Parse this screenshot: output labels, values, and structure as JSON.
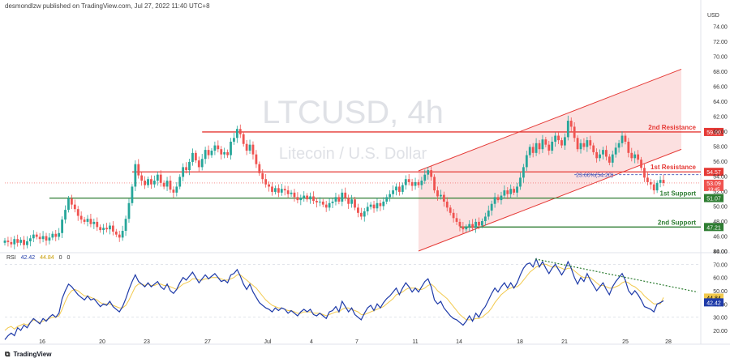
{
  "header": {
    "publisher": "desmondlzw published on TradingView.com, Jul 27, 2022 11:40 UTC+8"
  },
  "footer": {
    "brand": "TradingView"
  },
  "watermark": {
    "symbol": "LTCUSD, 4h",
    "description": "Litecoin / U.S. Dollar"
  },
  "colors": {
    "up": "#26a69a",
    "down": "#ef5350",
    "resistance": "#e53935",
    "support": "#2e7d32",
    "channel_fill": "#fbd5d5",
    "channel_line": "#e53935",
    "rsi_line": "#1e3aa8",
    "rsi_ma": "#f2c94c"
  },
  "chart_data": [
    {
      "type": "candlestick",
      "currency": "USD",
      "ylim": [
        44,
        76
      ],
      "y_ticks": [
        "74.00",
        "72.00",
        "70.00",
        "68.00",
        "66.00",
        "64.00",
        "62.00",
        "60.00",
        "58.00",
        "56.00",
        "54.00",
        "52.00",
        "50.00",
        "48.00",
        "46.00",
        "44.00"
      ],
      "x_ticks": [
        "16",
        "20",
        "23",
        "27",
        "Jul",
        "4",
        "7",
        "11",
        "14",
        "18",
        "21",
        "25",
        "28"
      ],
      "levels": [
        {
          "name": "2nd Resistance",
          "price": 59.9,
          "label": "59.90"
        },
        {
          "name": "1st Resistance",
          "price": 54.57,
          "label": "54.57"
        },
        {
          "name": "1st Support",
          "price": 51.07,
          "label": "51.07"
        },
        {
          "name": "2nd Support",
          "price": 47.21,
          "label": "47.21"
        }
      ],
      "fib_label": "23.60%(54.20)",
      "last_price": {
        "value": "53.09",
        "countdown": "19:45"
      },
      "close_series": [
        45.4,
        45.2,
        44.9,
        45.6,
        45.1,
        45.5,
        44.8,
        45.3,
        45.7,
        46.2,
        45.9,
        45.6,
        46.0,
        45.4,
        45.8,
        46.3,
        45.9,
        46.4,
        48.2,
        49.5,
        51.0,
        50.2,
        49.6,
        48.7,
        48.2,
        47.9,
        48.3,
        47.6,
        47.9,
        47.2,
        46.8,
        47.1,
        46.9,
        47.4,
        46.6,
        46.2,
        45.8,
        46.7,
        48.3,
        50.4,
        52.6,
        55.6,
        54.1,
        53.4,
        52.8,
        53.6,
        52.9,
        53.4,
        54.2,
        53.1,
        52.6,
        53.4,
        52.2,
        51.8,
        52.6,
        53.9,
        55.2,
        54.8,
        55.9,
        57.1,
        56.1,
        55.2,
        56.3,
        57.5,
        56.8,
        57.4,
        58.1,
        57.6,
        56.9,
        57.2,
        56.8,
        58.6,
        59.1,
        60.3,
        59.6,
        58.3,
        57.4,
        58.2,
        56.9,
        55.6,
        54.4,
        53.6,
        52.9,
        52.6,
        51.9,
        52.4,
        51.8,
        52.3,
        52.1,
        51.6,
        51.8,
        51.2,
        50.8,
        51.1,
        51.4,
        50.9,
        51.3,
        50.7,
        50.5,
        50.6,
        50.2,
        49.8,
        50.4,
        50.6,
        51.2,
        50.6,
        51.8,
        51.1,
        50.3,
        50.9,
        49.8,
        49.1,
        48.6,
        49.3,
        49.9,
        50.2,
        49.7,
        50.4,
        50.0,
        50.6,
        51.2,
        51.6,
        52.1,
        52.6,
        51.9,
        52.8,
        53.6,
        53.2,
        52.7,
        53.2,
        52.8,
        53.4,
        54.2,
        54.8,
        53.9,
        52.1,
        51.3,
        51.5,
        50.6,
        49.8,
        49.1,
        48.4,
        47.9,
        47.3,
        46.9,
        47.2,
        47.6,
        47.1,
        47.9,
        47.4,
        48.0,
        48.6,
        49.4,
        50.3,
        51.2,
        50.8,
        51.4,
        52.1,
        51.6,
        52.3,
        51.8,
        52.6,
        53.8,
        55.2,
        56.8,
        57.9,
        57.1,
        58.4,
        57.6,
        58.9,
        58.2,
        57.4,
        58.6,
        59.4,
        58.8,
        58.1,
        59.2,
        61.4,
        60.6,
        59.1,
        57.6,
        58.4,
        57.9,
        58.8,
        58.1,
        57.2,
        56.4,
        56.9,
        57.5,
        56.6,
        55.8,
        56.9,
        57.8,
        58.4,
        59.4,
        58.6,
        57.1,
        56.4,
        56.9,
        56.2,
        55.1,
        53.8,
        53.2,
        52.9,
        52.1,
        53.1,
        53.5,
        53.09
      ],
      "channel": {
        "lower_start": [
          0.0,
          44.0
        ],
        "upper_start": [
          0.0,
          54.7
        ],
        "slope_per_bar": 0.14
      }
    },
    {
      "type": "line",
      "title": "RSI",
      "values_shown": {
        "rsi": "42.42",
        "ma": "44.84"
      },
      "legend_extra": [
        "0",
        "0"
      ],
      "ylim": [
        20,
        80
      ],
      "y_ticks": [
        "80.00",
        "70.00",
        "60.00",
        "50.00",
        "40.00",
        "30.00",
        "20.00"
      ],
      "series": [
        {
          "values": [
            13,
            16,
            18,
            16,
            22,
            20,
            24,
            22,
            26,
            29,
            27,
            25,
            29,
            27,
            30,
            32,
            30,
            33,
            44,
            50,
            55,
            53,
            50,
            47,
            45,
            43,
            46,
            43,
            44,
            41,
            38,
            40,
            39,
            42,
            38,
            36,
            34,
            38,
            44,
            51,
            57,
            62,
            57,
            55,
            53,
            56,
            53,
            55,
            57,
            53,
            51,
            55,
            50,
            48,
            51,
            56,
            60,
            58,
            61,
            64,
            60,
            56,
            59,
            62,
            59,
            61,
            63,
            60,
            57,
            58,
            56,
            62,
            63,
            66,
            61,
            55,
            51,
            55,
            49,
            45,
            41,
            39,
            37,
            36,
            34,
            37,
            35,
            37,
            36,
            33,
            35,
            33,
            31,
            34,
            36,
            34,
            36,
            32,
            31,
            33,
            31,
            29,
            34,
            35,
            38,
            34,
            42,
            38,
            34,
            37,
            32,
            30,
            28,
            33,
            37,
            39,
            35,
            40,
            37,
            41,
            44,
            46,
            49,
            52,
            47,
            52,
            56,
            53,
            49,
            52,
            49,
            53,
            57,
            59,
            53,
            43,
            40,
            42,
            37,
            34,
            31,
            29,
            28,
            26,
            24,
            27,
            31,
            27,
            33,
            30,
            35,
            38,
            43,
            48,
            52,
            49,
            53,
            56,
            52,
            56,
            52,
            56,
            62,
            67,
            70,
            71,
            68,
            74,
            68,
            72,
            67,
            63,
            67,
            70,
            66,
            62,
            66,
            72,
            67,
            60,
            55,
            60,
            57,
            63,
            58,
            54,
            50,
            53,
            56,
            51,
            47,
            53,
            57,
            60,
            63,
            58,
            50,
            47,
            50,
            47,
            43,
            38,
            37,
            36,
            34,
            40,
            41,
            42.42
          ]
        },
        {
          "values": [
            20,
            22,
            23,
            21,
            23,
            24,
            25,
            24,
            26,
            28,
            27,
            26,
            27,
            28,
            29,
            30,
            30,
            31,
            36,
            42,
            47,
            50,
            51,
            50,
            48,
            46,
            46,
            45,
            44,
            43,
            41,
            40,
            40,
            40,
            39,
            38,
            37,
            37,
            39,
            43,
            48,
            53,
            55,
            55,
            54,
            55,
            54,
            54,
            55,
            55,
            54,
            54,
            53,
            52,
            51,
            53,
            55,
            56,
            57,
            59,
            59,
            58,
            58,
            59,
            59,
            60,
            60,
            60,
            59,
            58,
            58,
            59,
            60,
            62,
            62,
            60,
            58,
            56,
            54,
            52,
            49,
            46,
            43,
            41,
            39,
            38,
            37,
            37,
            36,
            35,
            35,
            34,
            33,
            33,
            34,
            34,
            34,
            33,
            33,
            33,
            32,
            31,
            32,
            33,
            34,
            34,
            36,
            37,
            37,
            36,
            35,
            34,
            32,
            32,
            33,
            34,
            35,
            36,
            37,
            38,
            40,
            42,
            44,
            47,
            48,
            49,
            51,
            52,
            52,
            52,
            51,
            51,
            52,
            54,
            55,
            53,
            50,
            48,
            46,
            44,
            41,
            38,
            35,
            32,
            30,
            28,
            28,
            28,
            29,
            29,
            30,
            32,
            34,
            37,
            41,
            44,
            47,
            49,
            51,
            52,
            53,
            53,
            55,
            58,
            61,
            64,
            66,
            68,
            69,
            70,
            70,
            69,
            68,
            68,
            68,
            67,
            66,
            67,
            67,
            65,
            63,
            61,
            60,
            60,
            60,
            58,
            56,
            54,
            54,
            53,
            52,
            52,
            53,
            54,
            56,
            57,
            56,
            54,
            53,
            51,
            49,
            46,
            44,
            42,
            40,
            40,
            40,
            44.84
          ]
        }
      ],
      "trendline": "dotted green declining"
    }
  ]
}
